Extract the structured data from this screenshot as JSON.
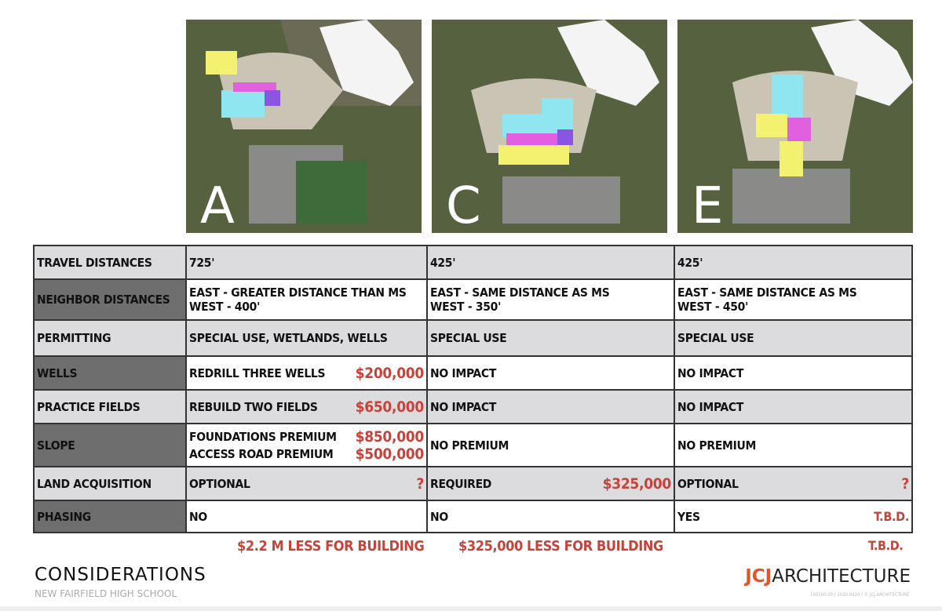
{
  "plans": [
    {
      "letter": "A"
    },
    {
      "letter": "C"
    },
    {
      "letter": "E"
    }
  ],
  "table": {
    "rows": [
      {
        "label": "TRAVEL DISTANCES",
        "a": "725'",
        "c": "425'",
        "e": "425'"
      },
      {
        "label": "NEIGHBOR DISTANCES",
        "a": [
          "EAST - GREATER DISTANCE THAN MS",
          "WEST - 400'"
        ],
        "c": [
          "EAST - SAME DISTANCE AS MS",
          "WEST - 350'"
        ],
        "e": [
          "EAST - SAME DISTANCE AS MS",
          "WEST - 450'"
        ]
      },
      {
        "label": "PERMITTING",
        "a": "SPECIAL USE, WETLANDS, WELLS",
        "c": "SPECIAL USE",
        "e": "SPECIAL USE"
      },
      {
        "label": "WELLS",
        "a": "REDRILL THREE WELLS",
        "a_cost": "$200,000",
        "c": "NO IMPACT",
        "e": "NO IMPACT"
      },
      {
        "label": "PRACTICE FIELDS",
        "a": "REBUILD TWO FIELDS",
        "a_cost": "$650,000",
        "c": "NO IMPACT",
        "e": "NO IMPACT"
      },
      {
        "label": "SLOPE",
        "a": "FOUNDATIONS PREMIUM",
        "a_cost": "$850,000",
        "a2": "ACCESS ROAD PREMIUM",
        "a2_cost": "$500,000",
        "c": "NO PREMIUM",
        "e": "NO PREMIUM"
      },
      {
        "label": "LAND ACQUISITION",
        "a": "OPTIONAL",
        "a_cost": "?",
        "c": "REQUIRED",
        "c_cost": "$325,000",
        "e": "OPTIONAL",
        "e_cost": "?"
      },
      {
        "label": "PHASING",
        "a": "NO",
        "c": "NO",
        "e": "YES",
        "e_cost": "T.B.D."
      }
    ]
  },
  "totals": {
    "a": "$2.2 M LESS FOR BUILDING",
    "c": "$325,000 LESS FOR BUILDING",
    "e": "T.B.D."
  },
  "footer": {
    "title": "CONSIDERATIONS",
    "subtitle": "NEW FAIRFIELD HIGH SCHOOL",
    "logo_bold": "JCJ",
    "logo_rest": "ARCHITECTURE",
    "fine_print": "190160.00 / 2020.0420 / © JCJ ARCHITECTURE"
  },
  "colors": {
    "accent_red": "#c8423a",
    "logo_orange": "#e2542b",
    "label_dark": "#6e6e6e",
    "row_light": "#dcdcde"
  }
}
